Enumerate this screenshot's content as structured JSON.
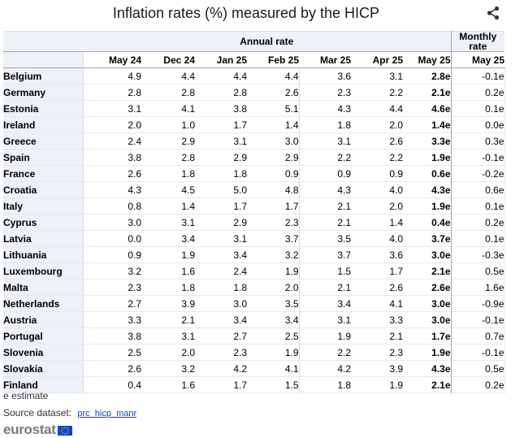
{
  "title": "Inflation rates (%) measured by the HICP",
  "table": {
    "group_annual": "Annual rate",
    "group_monthly_line1": "Monthly",
    "group_monthly_line2": "rate",
    "columns": [
      "May 24",
      "Dec 24",
      "Jan 25",
      "Feb 25",
      "Mar 25",
      "Apr 25",
      "May 25",
      "May 25"
    ],
    "rows": [
      {
        "country": "Belgium",
        "values": [
          "4.9",
          "4.4",
          "4.4",
          "4.4",
          "3.6",
          "3.1",
          "2.8e",
          "-0.1e"
        ]
      },
      {
        "country": "Germany",
        "values": [
          "2.8",
          "2.8",
          "2.8",
          "2.6",
          "2.3",
          "2.2",
          "2.1e",
          "0.2e"
        ]
      },
      {
        "country": "Estonia",
        "values": [
          "3.1",
          "4.1",
          "3.8",
          "5.1",
          "4.3",
          "4.4",
          "4.6e",
          "0.1e"
        ]
      },
      {
        "country": "Ireland",
        "values": [
          "2.0",
          "1.0",
          "1.7",
          "1.4",
          "1.8",
          "2.0",
          "1.4e",
          "0.0e"
        ]
      },
      {
        "country": "Greece",
        "values": [
          "2.4",
          "2.9",
          "3.1",
          "3.0",
          "3.1",
          "2.6",
          "3.3e",
          "0.3e"
        ]
      },
      {
        "country": "Spain",
        "values": [
          "3.8",
          "2.8",
          "2.9",
          "2.9",
          "2.2",
          "2.2",
          "1.9e",
          "-0.1e"
        ]
      },
      {
        "country": "France",
        "values": [
          "2.6",
          "1.8",
          "1.8",
          "0.9",
          "0.9",
          "0.9",
          "0.6e",
          "-0.2e"
        ]
      },
      {
        "country": "Croatia",
        "values": [
          "4.3",
          "4.5",
          "5.0",
          "4.8",
          "4.3",
          "4.0",
          "4.3e",
          "0.6e"
        ]
      },
      {
        "country": "Italy",
        "values": [
          "0.8",
          "1.4",
          "1.7",
          "1.7",
          "2.1",
          "2.0",
          "1.9e",
          "0.1e"
        ]
      },
      {
        "country": "Cyprus",
        "values": [
          "3.0",
          "3.1",
          "2.9",
          "2.3",
          "2.1",
          "1.4",
          "0.4e",
          "0.2e"
        ]
      },
      {
        "country": "Latvia",
        "values": [
          "0.0",
          "3.4",
          "3.1",
          "3.7",
          "3.5",
          "4.0",
          "3.7e",
          "0.1e"
        ]
      },
      {
        "country": "Lithuania",
        "values": [
          "0.9",
          "1.9",
          "3.4",
          "3.2",
          "3.7",
          "3.6",
          "3.0e",
          "-0.3e"
        ]
      },
      {
        "country": "Luxembourg",
        "values": [
          "3.2",
          "1.6",
          "2.4",
          "1.9",
          "1.5",
          "1.7",
          "2.1e",
          "0.5e"
        ]
      },
      {
        "country": "Malta",
        "values": [
          "2.3",
          "1.8",
          "1.8",
          "2.0",
          "2.1",
          "2.6",
          "2.6e",
          "1.6e"
        ]
      },
      {
        "country": "Netherlands",
        "values": [
          "2.7",
          "3.9",
          "3.0",
          "3.5",
          "3.4",
          "4.1",
          "3.0e",
          "-0.9e"
        ]
      },
      {
        "country": "Austria",
        "values": [
          "3.3",
          "2.1",
          "3.4",
          "3.4",
          "3.1",
          "3.3",
          "3.0e",
          "-0.1e"
        ]
      },
      {
        "country": "Portugal",
        "values": [
          "3.8",
          "3.1",
          "2.7",
          "2.5",
          "1.9",
          "2.1",
          "1.7e",
          "0.7e"
        ]
      },
      {
        "country": "Slovenia",
        "values": [
          "2.5",
          "2.0",
          "2.3",
          "1.9",
          "2.2",
          "2.3",
          "1.9e",
          "-0.1e"
        ]
      },
      {
        "country": "Slovakia",
        "values": [
          "2.6",
          "3.2",
          "4.2",
          "4.1",
          "4.2",
          "3.9",
          "4.3e",
          "0.5e"
        ]
      },
      {
        "country": "Finland",
        "values": [
          "0.4",
          "1.6",
          "1.7",
          "1.5",
          "1.8",
          "1.9",
          "2.1e",
          "0.2e"
        ]
      }
    ]
  },
  "footer": {
    "estimate_note": "e estimate",
    "source_label": "Source dataset:",
    "source_link": "prc_hicp_manr"
  },
  "branding": {
    "logo_text": "eurostat",
    "flag_color": "#0e47cb"
  },
  "icons": {
    "share": "share-icon"
  }
}
